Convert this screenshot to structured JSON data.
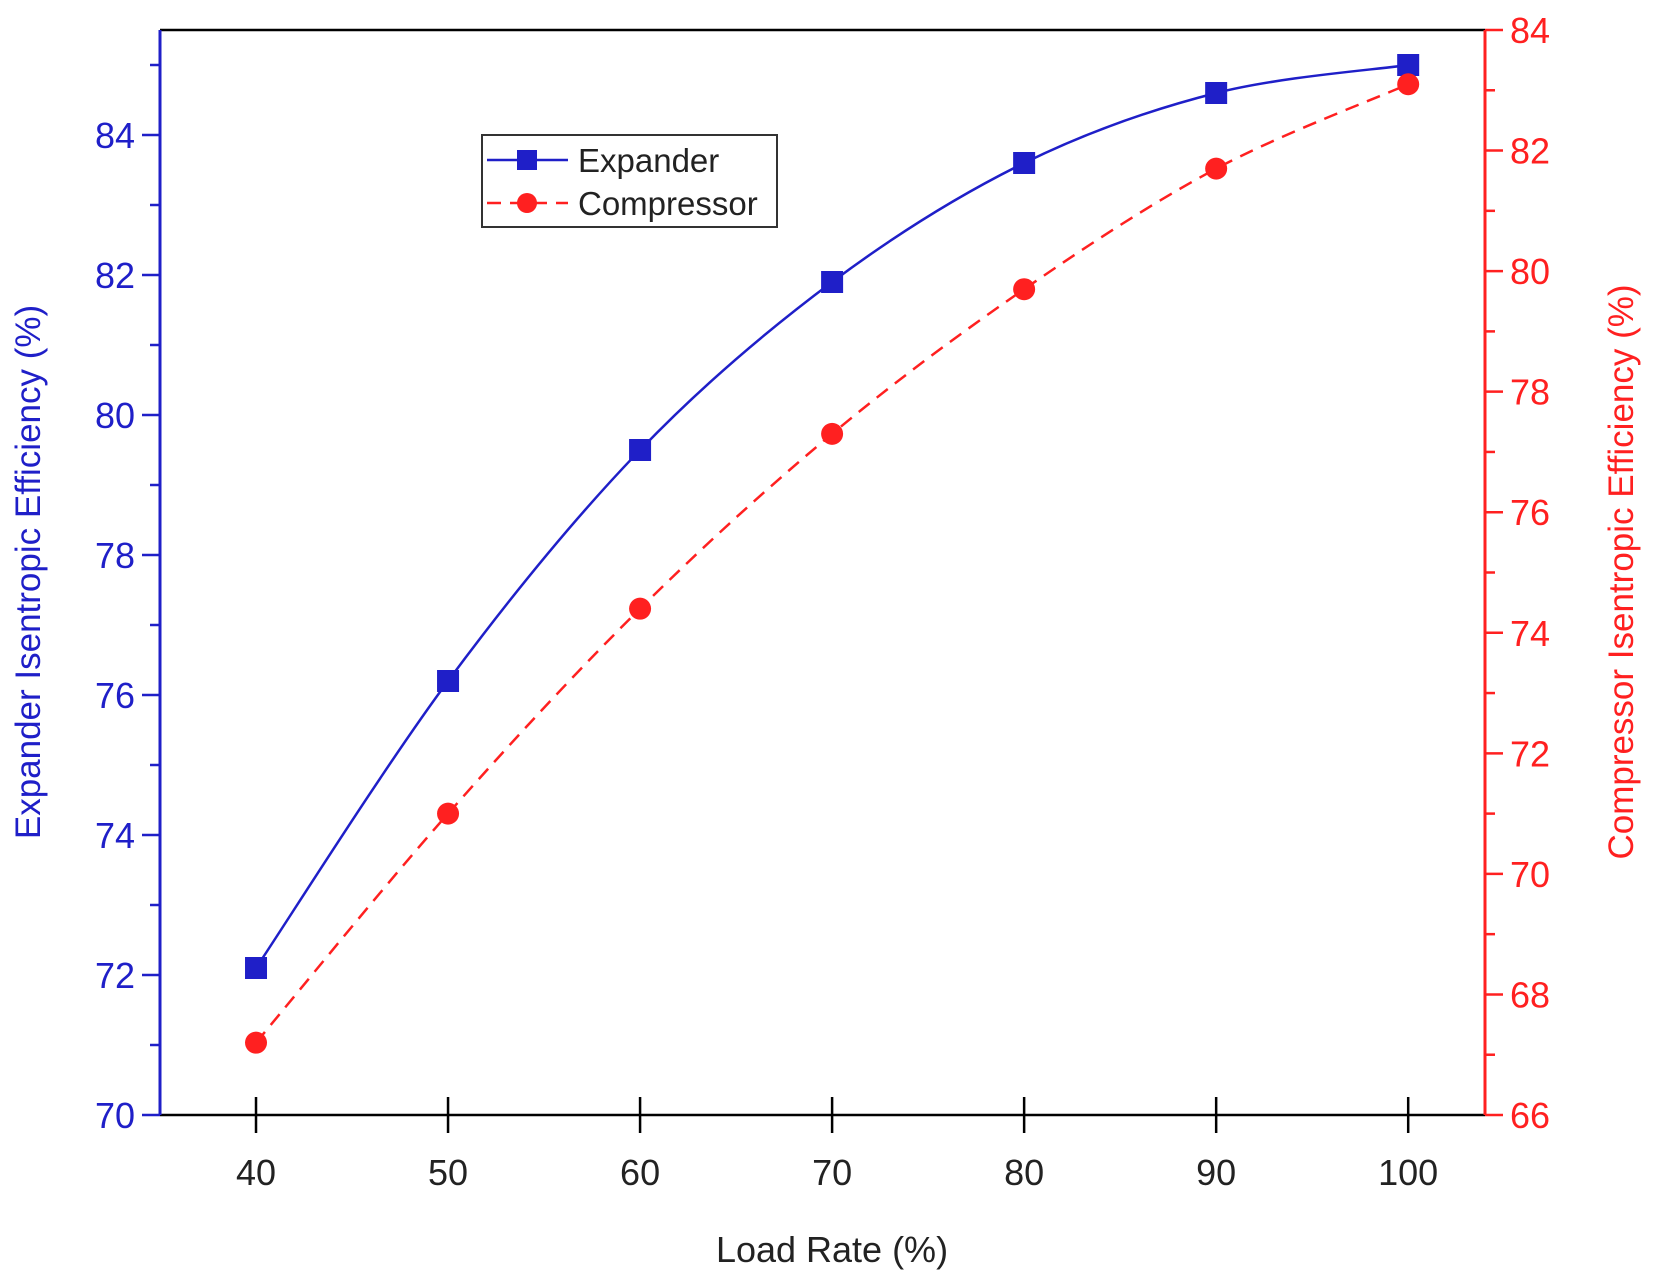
{
  "chart_data": {
    "type": "line",
    "title": "",
    "xlabel": "Load Rate (%)",
    "x": [
      40,
      50,
      60,
      70,
      80,
      90,
      100
    ],
    "xlim": [
      35,
      104
    ],
    "xticks": [
      40,
      50,
      60,
      70,
      80,
      90,
      100
    ],
    "axes": {
      "left": {
        "label": "Expander Isentropic Efficiency (%)",
        "range": [
          70,
          85.5
        ],
        "major_ticks": [
          70,
          72,
          74,
          76,
          78,
          80,
          82,
          84
        ],
        "minor_step": 1,
        "color": "#1f1fc8"
      },
      "right": {
        "label": "Compressor Isentropic Efficiency (%)",
        "range": [
          66,
          84
        ],
        "major_ticks": [
          66,
          68,
          70,
          72,
          74,
          76,
          78,
          80,
          82,
          84
        ],
        "minor_step": 1,
        "color": "#ff2020"
      }
    },
    "series": [
      {
        "name": "Expander",
        "axis": "left",
        "color": "#1f1fc8",
        "marker": "square",
        "line": "solid",
        "values": [
          72.1,
          76.2,
          79.5,
          81.9,
          83.6,
          84.6,
          85.0
        ]
      },
      {
        "name": "Compressor",
        "axis": "right",
        "color": "#ff2020",
        "marker": "circle",
        "line": "dashed",
        "values": [
          67.2,
          71.0,
          74.4,
          77.3,
          79.7,
          81.7,
          83.1
        ]
      }
    ],
    "legend": {
      "position": "top-left"
    },
    "grid": false
  }
}
